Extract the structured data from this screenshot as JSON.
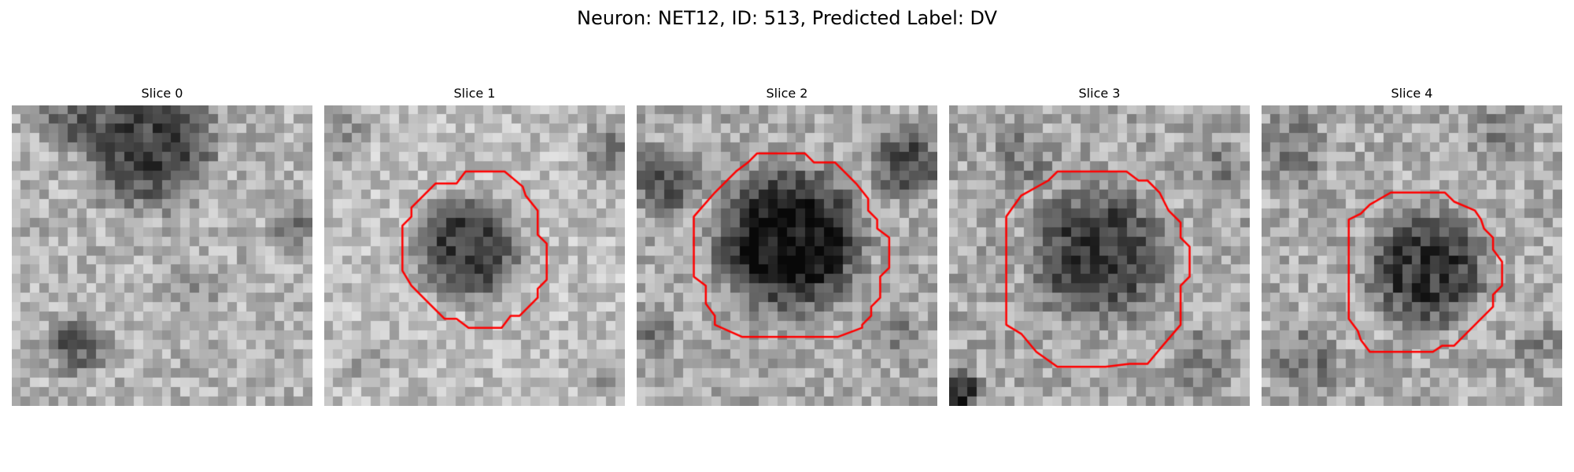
{
  "title": "Neuron: NET12, ID: 513, Predicted Label: DV",
  "contour_color": "#ff0000",
  "slices": [
    {
      "label": "Slice 0",
      "has_contour": false
    },
    {
      "label": "Slice 1",
      "has_contour": true
    },
    {
      "label": "Slice 2",
      "has_contour": true
    },
    {
      "label": "Slice 3",
      "has_contour": true
    },
    {
      "label": "Slice 4",
      "has_contour": true
    }
  ]
}
